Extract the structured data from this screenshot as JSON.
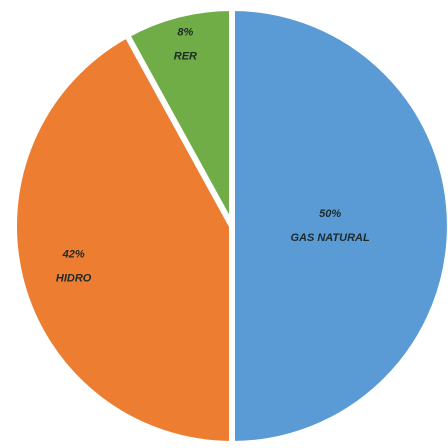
{
  "chart_data": {
    "type": "pie",
    "categories": [
      "GAS NATURAL",
      "HIDRO",
      "RER"
    ],
    "values": [
      50,
      42,
      8
    ],
    "value_labels": [
      "50%",
      "42%",
      "8%"
    ],
    "colors": [
      "#5b9bd5",
      "#ed7d31",
      "#70ad47"
    ]
  }
}
